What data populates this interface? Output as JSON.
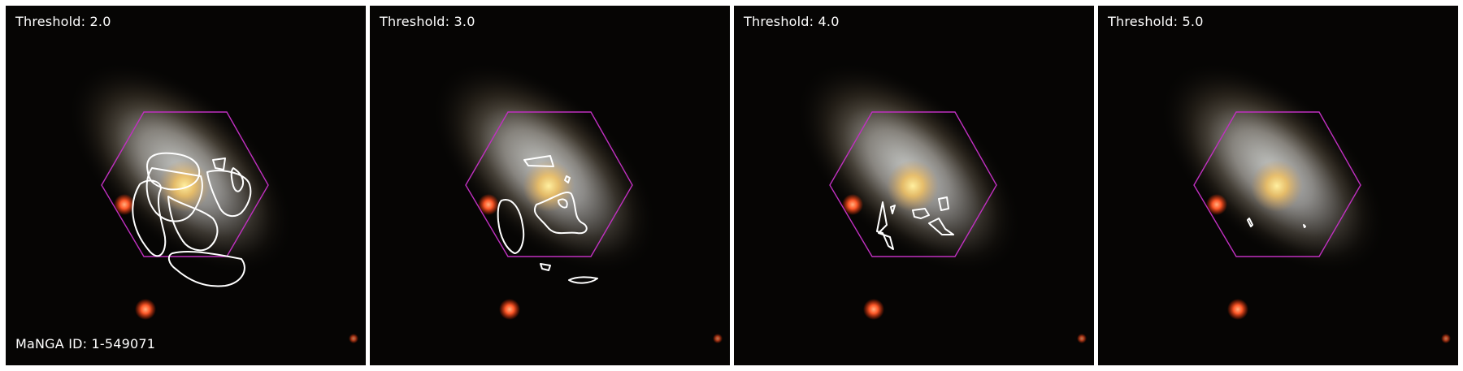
{
  "panels": [
    {
      "label": "Threshold: 2.0"
    },
    {
      "label": "Threshold: 3.0"
    },
    {
      "label": "Threshold: 4.0"
    },
    {
      "label": "Threshold: 5.0"
    }
  ],
  "manga_id": "MaNGA ID: 1-549071",
  "colors": {
    "background": "#000000",
    "hexagon": "#c030c0",
    "contour": "#ffffff",
    "galaxy_core": "#ffe070",
    "red_source": "#ff5a2a"
  }
}
